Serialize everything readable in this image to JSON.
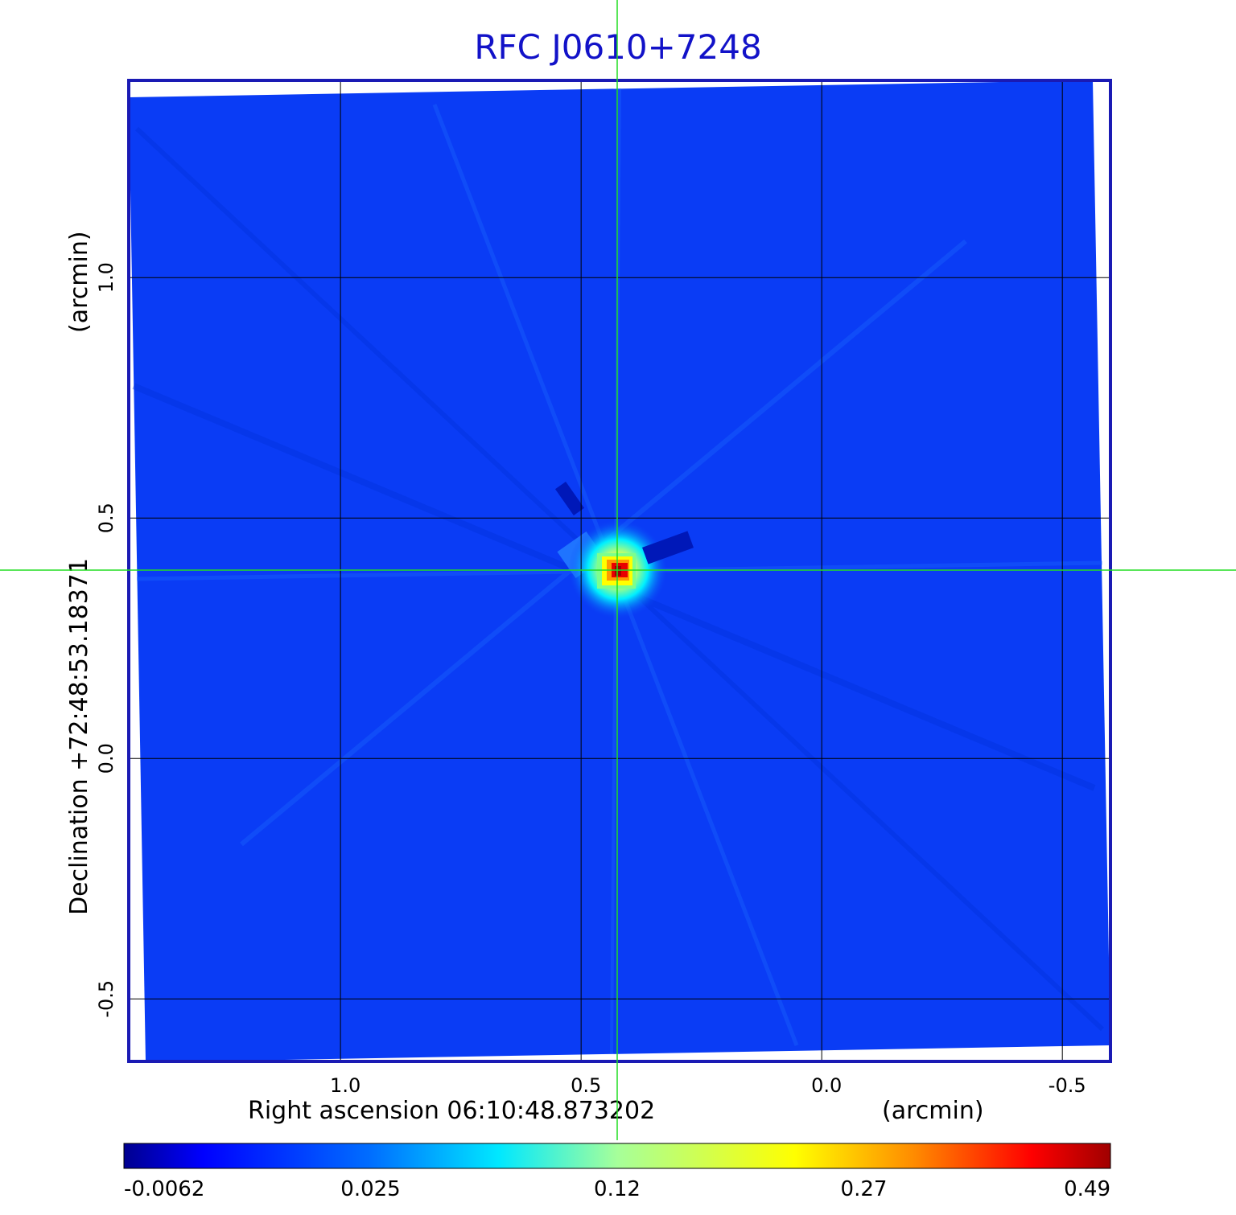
{
  "title": "RFC J0610+7248",
  "colors": {
    "title": "#1212c8",
    "frame": "#1a1ab4",
    "grid": "#000000",
    "crosshair": "#22dd22",
    "background_map": "#0a3cf5"
  },
  "chart_data": {
    "type": "heatmap",
    "title": "RFC J0610+7248",
    "xlabel": "Right ascension  06:10:48.873202",
    "xunit": "(arcmin)",
    "ylabel": "Declination  +72:48:53.18371",
    "yunit": "(arcmin)",
    "x_ticks": [
      "1.0",
      "0.5",
      "0.0",
      "-0.5"
    ],
    "x_tick_values": [
      1.0,
      0.5,
      0.0,
      -0.5
    ],
    "y_ticks": [
      "1.0",
      "0.5",
      "0.0",
      "-0.5"
    ],
    "y_tick_values": [
      1.0,
      0.5,
      0.0,
      -0.5
    ],
    "xlim": [
      1.44,
      -0.6
    ],
    "ylim": [
      -0.63,
      1.41
    ],
    "x_reversed": true,
    "grid": true,
    "crosshair": {
      "x": 0.43,
      "y": 0.39
    },
    "peak": {
      "x": 0.43,
      "y": 0.39,
      "value": 0.49
    },
    "colorbar": {
      "colormap": "jet",
      "tick_labels": [
        "-0.0062",
        "0.025",
        "0.12",
        "0.27",
        "0.49"
      ],
      "tick_values": [
        -0.0062,
        0.025,
        0.12,
        0.27,
        0.49
      ]
    }
  }
}
